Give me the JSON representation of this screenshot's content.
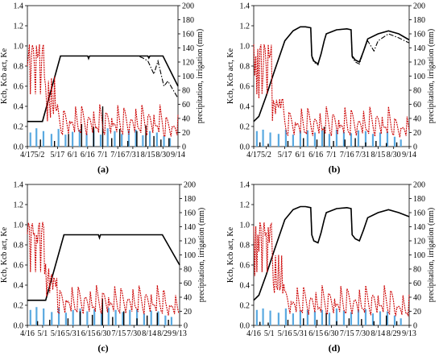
{
  "figure": {
    "panels_order": [
      "a",
      "b",
      "c",
      "d"
    ]
  },
  "chart_data": [
    {
      "type": "line",
      "panel_label": "(a)",
      "x_tick_labels": [
        "4/17",
        "5/2",
        "5/17",
        "6/1",
        "6/16",
        "7/1",
        "7/16",
        "7/31",
        "8/15",
        "8/30",
        "9/14"
      ],
      "ylabel_left": "Kcb, Kcb act, Ke",
      "ylabel_right": "precipitation, irrigation (mm)",
      "ylim_left": [
        0,
        1.4
      ],
      "ylim_right": [
        0,
        200
      ],
      "yticks_left": [
        "0.0",
        "0.2",
        "0.4",
        "0.6",
        "0.8",
        "1.0",
        "1.2",
        "1.4"
      ],
      "yticks_right": [
        "0",
        "20",
        "40",
        "60",
        "80",
        "100",
        "120",
        "140",
        "160",
        "180",
        "200"
      ],
      "x": [
        0,
        12,
        30,
        45,
        60,
        75,
        90,
        105,
        120,
        135,
        150
      ],
      "series": [
        {
          "style": "kcb",
          "color": "#000000",
          "x": [
            0,
            15,
            33,
            60,
            61,
            62,
            75,
            120,
            121,
            122,
            135,
            150
          ],
          "values": [
            0.25,
            0.25,
            0.9,
            0.9,
            0.88,
            0.9,
            0.9,
            0.9,
            0.88,
            0.9,
            0.9,
            0.6
          ]
        },
        {
          "style": "kcb_act",
          "color": "#000000",
          "x": [
            0,
            15,
            33,
            60,
            61,
            62,
            110,
            115,
            120,
            126,
            130,
            136,
            140,
            150
          ],
          "values": [
            0.25,
            0.25,
            0.9,
            0.9,
            0.87,
            0.9,
            0.9,
            0.88,
            0.85,
            0.72,
            0.85,
            0.6,
            0.65,
            0.48
          ]
        },
        {
          "style": "ke",
          "color": "#cc0000",
          "shape": "spiky",
          "start": 1.02,
          "base": 0.22,
          "peak": 0.42
        },
        {
          "style": "precip",
          "color": "#5aa9e0",
          "kind": "bars",
          "x": [
            3,
            9,
            16,
            24,
            31,
            38,
            45,
            52,
            59,
            66,
            73,
            80,
            87,
            94,
            101,
            108,
            115,
            122,
            129,
            136,
            142
          ],
          "values": [
            20,
            26,
            22,
            18,
            25,
            17,
            21,
            24,
            19,
            23,
            17,
            26,
            22,
            18,
            23,
            24,
            16,
            22,
            20,
            15,
            12
          ]
        },
        {
          "style": "irrig",
          "color": "#000000",
          "kind": "bars",
          "x": [
            13,
            27,
            41,
            54,
            66,
            75,
            84,
            92,
            100,
            109,
            118,
            126,
            133,
            141
          ],
          "values": [
            10,
            8,
            18,
            32,
            28,
            57,
            12,
            25,
            8,
            22,
            30,
            15,
            10,
            12
          ]
        }
      ]
    },
    {
      "type": "line",
      "panel_label": "(b)",
      "x_tick_labels": [
        "4/17",
        "5/2",
        "5/17",
        "6/1",
        "6/16",
        "7/1",
        "7/16",
        "7/31",
        "8/15",
        "8/30",
        "9/14"
      ],
      "ylabel_left": "Kcb, Kcb act, Ke",
      "ylabel_right": "precipitation, irrigation (mm)",
      "ylim_left": [
        0,
        1.4
      ],
      "ylim_right": [
        0,
        200
      ],
      "yticks_left": [
        "0.0",
        "0.2",
        "0.4",
        "0.6",
        "0.8",
        "1.0",
        "1.2",
        "1.4"
      ],
      "yticks_right": [
        "0",
        "20",
        "40",
        "60",
        "80",
        "100",
        "120",
        "140",
        "160",
        "180",
        "200"
      ],
      "x": [
        0,
        12,
        30,
        45,
        60,
        75,
        90,
        105,
        120,
        135,
        150
      ],
      "series": [
        {
          "style": "kcb",
          "color": "#000000",
          "x": [
            0,
            5,
            12,
            20,
            30,
            38,
            45,
            50,
            55,
            56,
            58,
            62,
            65,
            68,
            70,
            80,
            90,
            94,
            95,
            98,
            102,
            106,
            110,
            120,
            130,
            140,
            150
          ],
          "values": [
            0.25,
            0.3,
            0.5,
            0.75,
            1.05,
            1.15,
            1.19,
            1.19,
            1.18,
            0.9,
            0.85,
            0.82,
            0.92,
            1.05,
            1.12,
            1.16,
            1.17,
            1.16,
            0.9,
            0.86,
            0.84,
            0.95,
            1.07,
            1.12,
            1.15,
            1.12,
            1.06
          ]
        },
        {
          "style": "kcb_act",
          "color": "#000000",
          "x": [
            0,
            5,
            12,
            20,
            30,
            38,
            45,
            50,
            55,
            56,
            58,
            62,
            65,
            68,
            70,
            80,
            90,
            94,
            95,
            98,
            102,
            106,
            110,
            116,
            120,
            130,
            140,
            150
          ],
          "values": [
            0.25,
            0.3,
            0.5,
            0.75,
            1.05,
            1.15,
            1.19,
            1.19,
            1.18,
            0.89,
            0.84,
            0.81,
            0.92,
            1.05,
            1.12,
            1.16,
            1.17,
            1.16,
            0.89,
            0.84,
            0.82,
            0.95,
            1.05,
            0.95,
            1.05,
            1.12,
            1.08,
            1.03
          ]
        },
        {
          "style": "ke",
          "color": "#cc0000",
          "shape": "spiky",
          "start": 1.02,
          "base": 0.2,
          "peak": 0.4
        },
        {
          "style": "precip",
          "color": "#5aa9e0",
          "kind": "bars",
          "x": [
            3,
            9,
            16,
            24,
            31,
            38,
            45,
            52,
            59,
            66,
            73,
            80,
            87,
            94,
            101,
            108,
            115,
            122,
            129,
            136,
            142
          ],
          "values": [
            22,
            24,
            20,
            18,
            24,
            17,
            22,
            23,
            20,
            23,
            18,
            24,
            21,
            19,
            23,
            22,
            18,
            20,
            21,
            14,
            10
          ]
        },
        {
          "style": "irrig",
          "color": "#000000",
          "kind": "bars",
          "x": [
            6,
            14,
            33,
            48,
            61,
            68,
            77,
            88,
            98,
            108,
            118,
            128,
            138
          ],
          "values": [
            6,
            4,
            8,
            12,
            10,
            28,
            8,
            10,
            12,
            6,
            8,
            5,
            6
          ]
        }
      ]
    },
    {
      "type": "line",
      "panel_label": "(c)",
      "x_tick_labels": [
        "4/16",
        "5/1",
        "5/16",
        "5/31",
        "6/15",
        "6/30",
        "7/15",
        "7/30",
        "8/14",
        "8/29",
        "9/13"
      ],
      "ylabel_left": "Kcb, Kcb act, Ke",
      "ylabel_right": "precipitation, irrigation (mm)",
      "ylim_left": [
        0,
        1.4
      ],
      "ylim_right": [
        0,
        200
      ],
      "yticks_left": [
        "0.0",
        "0.2",
        "0.4",
        "0.6",
        "0.8",
        "1.0",
        "1.2",
        "1.4"
      ],
      "yticks_right": [
        "0",
        "20",
        "40",
        "60",
        "80",
        "100",
        "120",
        "140",
        "160",
        "180",
        "200"
      ],
      "x": [
        0,
        15,
        30,
        45,
        60,
        75,
        90,
        105,
        120,
        135,
        150
      ],
      "series": [
        {
          "style": "kcb",
          "color": "#000000",
          "x": [
            0,
            18,
            36,
            70,
            71,
            72,
            133,
            150
          ],
          "values": [
            0.25,
            0.25,
            0.9,
            0.9,
            0.87,
            0.9,
            0.9,
            0.6
          ]
        },
        {
          "style": "kcb_act",
          "color": "#000000",
          "x": [
            0,
            18,
            36,
            70,
            71,
            72,
            133,
            150
          ],
          "values": [
            0.25,
            0.25,
            0.9,
            0.9,
            0.87,
            0.9,
            0.9,
            0.6
          ]
        },
        {
          "style": "ke",
          "color": "#cc0000",
          "shape": "spiky",
          "start": 1.03,
          "base": 0.22,
          "peak": 0.4
        },
        {
          "style": "precip",
          "color": "#5aa9e0",
          "kind": "bars",
          "x": [
            3,
            9,
            16,
            24,
            31,
            38,
            45,
            52,
            59,
            66,
            73,
            80,
            87,
            94,
            101,
            108,
            115,
            122,
            129,
            136,
            142
          ],
          "values": [
            22,
            26,
            24,
            19,
            25,
            18,
            22,
            24,
            20,
            23,
            18,
            25,
            22,
            19,
            22,
            23,
            17,
            21,
            20,
            14,
            12
          ]
        },
        {
          "style": "irrig",
          "color": "#000000",
          "kind": "bars",
          "x": [
            10,
            22,
            40,
            52,
            64,
            74,
            84,
            95,
            108,
            118,
            128,
            139
          ],
          "values": [
            6,
            8,
            10,
            20,
            15,
            38,
            12,
            20,
            10,
            14,
            18,
            8
          ]
        }
      ]
    },
    {
      "type": "line",
      "panel_label": "(d)",
      "x_tick_labels": [
        "4/16",
        "5/1",
        "5/16",
        "5/31",
        "6/15",
        "6/30",
        "7/15",
        "7/30",
        "8/14",
        "8/29",
        "9/13"
      ],
      "ylabel_left": "Kcb, Kcb act, Ke",
      "ylabel_right": "precipitation, irrigation (mm)",
      "ylim_left": [
        0,
        1.4
      ],
      "ylim_right": [
        0,
        200
      ],
      "yticks_left": [
        "0.0",
        "0.2",
        "0.4",
        "0.6",
        "0.8",
        "1.0",
        "1.2",
        "1.4"
      ],
      "yticks_right": [
        "0",
        "20",
        "40",
        "60",
        "80",
        "100",
        "120",
        "140",
        "160",
        "180",
        "200"
      ],
      "x": [
        0,
        15,
        30,
        45,
        60,
        75,
        90,
        105,
        120,
        135,
        150
      ],
      "series": [
        {
          "style": "kcb",
          "color": "#000000",
          "x": [
            0,
            5,
            12,
            20,
            30,
            38,
            45,
            50,
            55,
            56,
            58,
            62,
            65,
            68,
            70,
            80,
            90,
            94,
            95,
            98,
            102,
            106,
            110,
            120,
            130,
            140,
            150
          ],
          "values": [
            0.25,
            0.3,
            0.5,
            0.75,
            1.05,
            1.15,
            1.18,
            1.18,
            1.17,
            0.9,
            0.84,
            0.82,
            0.92,
            1.05,
            1.12,
            1.16,
            1.17,
            1.16,
            0.9,
            0.86,
            0.84,
            0.95,
            1.07,
            1.12,
            1.15,
            1.12,
            1.08
          ]
        },
        {
          "style": "kcb_act",
          "color": "#000000",
          "x": [
            0,
            5,
            12,
            20,
            30,
            38,
            45,
            50,
            55,
            56,
            58,
            62,
            65,
            68,
            70,
            80,
            90,
            94,
            95,
            98,
            102,
            106,
            110,
            120,
            130,
            140,
            150
          ],
          "values": [
            0.25,
            0.3,
            0.5,
            0.75,
            1.05,
            1.15,
            1.18,
            1.18,
            1.17,
            0.9,
            0.84,
            0.82,
            0.92,
            1.05,
            1.12,
            1.16,
            1.17,
            1.16,
            0.9,
            0.86,
            0.84,
            0.95,
            1.07,
            1.12,
            1.15,
            1.12,
            1.08
          ]
        },
        {
          "style": "ke",
          "color": "#cc0000",
          "shape": "spiky",
          "start": 1.03,
          "base": 0.2,
          "peak": 0.4
        },
        {
          "style": "precip",
          "color": "#5aa9e0",
          "kind": "bars",
          "x": [
            3,
            9,
            16,
            24,
            31,
            38,
            45,
            52,
            59,
            66,
            73,
            80,
            87,
            94,
            101,
            108,
            115,
            122,
            129,
            136,
            142
          ],
          "values": [
            22,
            24,
            21,
            18,
            24,
            17,
            21,
            22,
            20,
            22,
            18,
            24,
            21,
            19,
            22,
            23,
            17,
            20,
            20,
            14,
            10
          ]
        },
        {
          "style": "irrig",
          "color": "#000000",
          "kind": "bars",
          "x": [
            6,
            14,
            33,
            48,
            61,
            70,
            80,
            92,
            104,
            116,
            128,
            138
          ],
          "values": [
            5,
            4,
            8,
            10,
            8,
            18,
            6,
            10,
            9,
            6,
            14,
            6
          ]
        }
      ]
    }
  ]
}
